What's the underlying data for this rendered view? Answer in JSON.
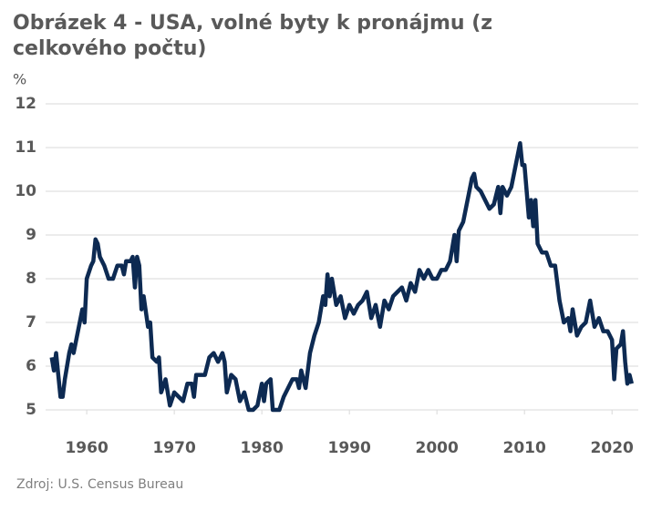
{
  "chart_data": {
    "type": "line",
    "title": "Obrázek 4 - USA, volné byty k pronájmu (z celkového počtu)",
    "y_label": "%",
    "source": "Zdroj: U.S. Census Bureau",
    "xlim": [
      1955.3,
      2023
    ],
    "ylim": [
      5,
      12
    ],
    "xticks": [
      1960,
      1970,
      1980,
      1990,
      2000,
      2010,
      2020
    ],
    "yticks": [
      5,
      6,
      7,
      8,
      9,
      10,
      11,
      12
    ],
    "grid": true,
    "series": [
      {
        "name": "Volné byty k pronájmu",
        "color": "#0d2a52",
        "x": [
          1956,
          1956.25,
          1956.5,
          1956.75,
          1957,
          1957.25,
          1957.5,
          1958,
          1958.25,
          1958.5,
          1959,
          1959.5,
          1959.75,
          1960,
          1960.5,
          1960.75,
          1961,
          1961.25,
          1961.5,
          1962,
          1962.5,
          1963,
          1963.5,
          1964,
          1964.25,
          1964.5,
          1965,
          1965.25,
          1965.5,
          1965.75,
          1966,
          1966.25,
          1966.5,
          1967,
          1967.25,
          1967.5,
          1968,
          1968.25,
          1968.5,
          1969,
          1969.25,
          1969.5,
          1970,
          1970.5,
          1971,
          1971.5,
          1972,
          1972.25,
          1972.5,
          1973,
          1973.5,
          1974,
          1974.5,
          1975,
          1975.5,
          1975.75,
          1976,
          1976.5,
          1977,
          1977.5,
          1978,
          1978.5,
          1979,
          1979.5,
          1980,
          1980.25,
          1980.5,
          1981,
          1981.25,
          1981.5,
          1982,
          1982.5,
          1983,
          1983.5,
          1984,
          1984.25,
          1984.5,
          1985,
          1985.5,
          1986,
          1986.5,
          1987,
          1987.25,
          1987.5,
          1987.75,
          1988,
          1988.5,
          1989,
          1989.5,
          1990,
          1990.5,
          1991,
          1991.5,
          1992,
          1992.5,
          1993,
          1993.5,
          1994,
          1994.5,
          1995,
          1995.5,
          1996,
          1996.5,
          1997,
          1997.5,
          1998,
          1998.5,
          1999,
          1999.5,
          2000,
          2000.5,
          2001,
          2001.5,
          2002,
          2002.25,
          2002.5,
          2003,
          2003.5,
          2004,
          2004.25,
          2004.5,
          2005,
          2005.5,
          2006,
          2006.5,
          2007,
          2007.25,
          2007.5,
          2008,
          2008.5,
          2009,
          2009.5,
          2009.75,
          2010,
          2010.5,
          2010.75,
          2011,
          2011.25,
          2011.5,
          2012,
          2012.5,
          2013,
          2013.5,
          2014,
          2014.5,
          2015,
          2015.25,
          2015.5,
          2016,
          2016.5,
          2017,
          2017.5,
          2018,
          2018.5,
          2019,
          2019.5,
          2020,
          2020.25,
          2020.5,
          2021,
          2021.25,
          2021.5,
          2021.75,
          2022,
          2022.25
        ],
        "values": [
          6.2,
          5.9,
          6.3,
          5.8,
          5.3,
          5.3,
          5.7,
          6.3,
          6.5,
          6.3,
          6.8,
          7.3,
          7.0,
          8.0,
          8.3,
          8.4,
          8.9,
          8.8,
          8.5,
          8.3,
          8.0,
          8.0,
          8.3,
          8.3,
          8.1,
          8.4,
          8.4,
          8.5,
          7.8,
          8.5,
          8.3,
          7.3,
          7.6,
          6.9,
          7.0,
          6.2,
          6.1,
          6.2,
          5.4,
          5.7,
          5.4,
          5.1,
          5.4,
          5.3,
          5.2,
          5.6,
          5.6,
          5.3,
          5.8,
          5.8,
          5.8,
          6.2,
          6.3,
          6.1,
          6.3,
          6.1,
          5.4,
          5.8,
          5.7,
          5.2,
          5.4,
          5.0,
          5.0,
          5.1,
          5.6,
          5.2,
          5.6,
          5.7,
          5.0,
          5.0,
          5.0,
          5.3,
          5.5,
          5.7,
          5.7,
          5.5,
          5.9,
          5.5,
          6.3,
          6.7,
          7.0,
          7.6,
          7.4,
          8.1,
          7.6,
          8.0,
          7.4,
          7.6,
          7.1,
          7.4,
          7.2,
          7.4,
          7.5,
          7.7,
          7.1,
          7.4,
          6.9,
          7.5,
          7.3,
          7.6,
          7.7,
          7.8,
          7.5,
          7.9,
          7.7,
          8.2,
          8.0,
          8.2,
          8.0,
          8.0,
          8.2,
          8.2,
          8.4,
          9.0,
          8.4,
          9.1,
          9.3,
          9.8,
          10.3,
          10.4,
          10.1,
          10.0,
          9.8,
          9.6,
          9.7,
          10.1,
          9.5,
          10.1,
          9.9,
          10.1,
          10.6,
          11.1,
          10.6,
          10.6,
          9.4,
          9.8,
          9.2,
          9.8,
          8.8,
          8.6,
          8.6,
          8.3,
          8.3,
          7.5,
          7.0,
          7.1,
          6.8,
          7.3,
          6.7,
          6.9,
          7.0,
          7.5,
          6.9,
          7.1,
          6.8,
          6.8,
          6.6,
          5.7,
          6.4,
          6.5,
          6.8,
          6.1,
          5.6,
          5.8,
          5.6
        ]
      }
    ]
  }
}
